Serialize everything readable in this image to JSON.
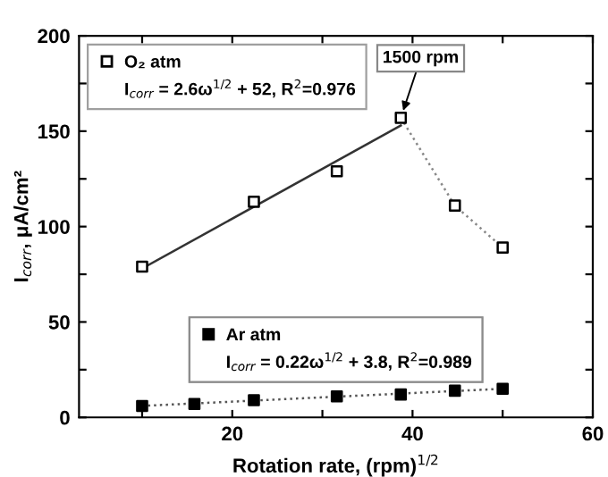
{
  "chart_data": {
    "type": "scatter",
    "xlabel": "Rotation rate, (rpm)$^{1/2}$",
    "ylabel": "I$_{corr}$, μA/cm²",
    "xlim": [
      3,
      60
    ],
    "xticks": [
      {
        "value": 10,
        "label": null
      },
      20,
      {
        "value": 30,
        "label": null
      },
      40,
      {
        "value": 50,
        "label": null
      },
      60
    ],
    "ylim": [
      0,
      200
    ],
    "yticks": [
      0,
      {
        "value": 25,
        "label": null
      },
      50,
      {
        "value": 75,
        "label": null
      },
      100,
      {
        "value": 125,
        "label": null
      },
      150,
      {
        "value": 175,
        "label": null
      },
      200
    ],
    "grid": false,
    "legend": "top left",
    "marker": "square",
    "series": [
      {
        "name": "O₂ atm",
        "color": "#ffffff",
        "x": [
          10,
          22.4,
          31.6,
          38.7,
          44.7,
          50
        ],
        "values": [
          79,
          113,
          129,
          157,
          111,
          89
        ]
      },
      {
        "type": "line",
        "marker": "none",
        "line_style": "solid",
        "color": "#333333",
        "x": [
          10,
          38.7
        ],
        "values": [
          78,
          153
        ]
      },
      {
        "type": "line",
        "marker": "none",
        "line_style": "dotted",
        "color": "#888888",
        "x": [
          38.7,
          44.7,
          50
        ],
        "values": [
          157,
          111,
          89
        ]
      },
      {
        "name": "Ar atm",
        "color": "#000000",
        "x": [
          10,
          15.8,
          22.4,
          31.6,
          38.7,
          44.7,
          50
        ],
        "values": [
          6,
          7,
          9,
          11,
          12,
          14,
          15
        ]
      },
      {
        "type": "line",
        "marker": "none",
        "line_style": "dotted",
        "color": "#555555",
        "x": [
          10,
          50
        ],
        "values": [
          6,
          15
        ]
      }
    ],
    "annotations": [
      "I$_{corr}$ = 2.6ω$^{1/2}$ + 52, R$^{2}$=0.976",
      "I$_{corr}$ = 0.22ω$^{1/2}$ + 3.8, R$^{2}$=0.989",
      {
        "text": "1500 rpm",
        "x": 38.7,
        "y": 157
      }
    ]
  }
}
